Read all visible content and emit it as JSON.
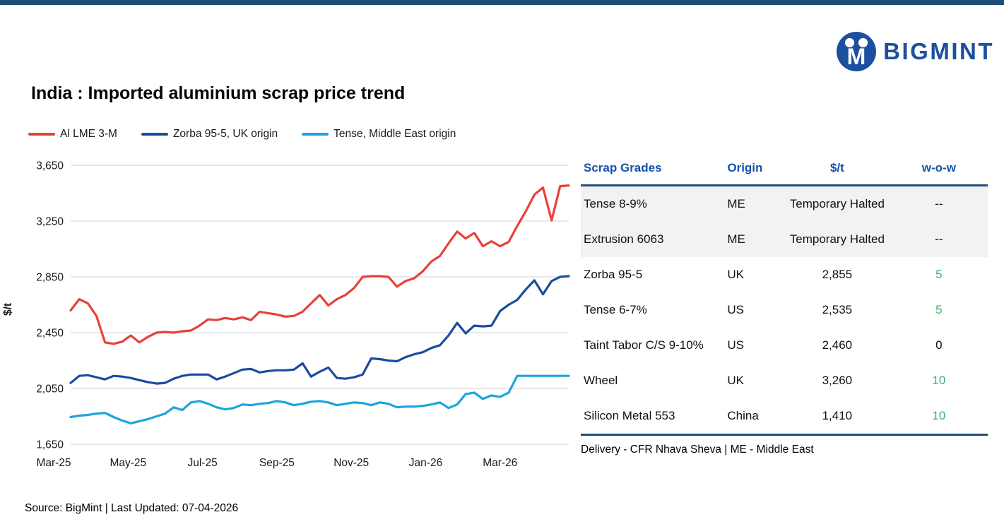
{
  "brand": {
    "logo_text": "BIGMINT"
  },
  "title": "India : Imported aluminium scrap price trend",
  "legend": [
    {
      "label": "Al LME 3-M",
      "color": "#E8403A"
    },
    {
      "label": "Zorba 95-5, UK origin",
      "color": "#1B4C9E"
    },
    {
      "label": "Tense, Middle East origin",
      "color": "#1CA4DE"
    }
  ],
  "chart_data": {
    "type": "line",
    "title": "India : Imported aluminium scrap price trend",
    "xlabel": "",
    "ylabel": "$/t",
    "ylim": [
      1650,
      3650
    ],
    "grid": "horizontal",
    "legend_position": "top-left",
    "yticks": [
      {
        "value": 3650,
        "label": "3,650"
      },
      {
        "value": 3250,
        "label": "3,250"
      },
      {
        "value": 2850,
        "label": "2,850"
      },
      {
        "value": 2450,
        "label": "2,450"
      },
      {
        "value": 2050,
        "label": "2,050"
      },
      {
        "value": 1650,
        "label": "1,650"
      }
    ],
    "xtick_labels": [
      "Mar-25",
      "May-25",
      "Jul-25",
      "Sep-25",
      "Nov-25",
      "Jan-26",
      "Mar-26"
    ],
    "x_unit": "weekly",
    "series": [
      {
        "name": "Al LME 3-M",
        "color": "#E8403A",
        "values": [
          2610,
          2690,
          2660,
          2570,
          2380,
          2370,
          2385,
          2430,
          2380,
          2420,
          2450,
          2455,
          2450,
          2460,
          2465,
          2500,
          2545,
          2540,
          2555,
          2545,
          2560,
          2540,
          2600,
          2590,
          2580,
          2565,
          2570,
          2600,
          2660,
          2720,
          2645,
          2690,
          2720,
          2770,
          2850,
          2855,
          2855,
          2850,
          2780,
          2820,
          2840,
          2890,
          2960,
          3000,
          3090,
          3175,
          3125,
          3165,
          3070,
          3105,
          3070,
          3100,
          3215,
          3320,
          3440,
          3490,
          3255,
          3500,
          3505
        ]
      },
      {
        "name": "Zorba 95-5, UK origin",
        "color": "#1B4C9E",
        "values": [
          2090,
          2140,
          2145,
          2130,
          2115,
          2140,
          2135,
          2125,
          2110,
          2095,
          2085,
          2090,
          2120,
          2140,
          2150,
          2150,
          2150,
          2115,
          2135,
          2160,
          2185,
          2190,
          2165,
          2175,
          2180,
          2180,
          2185,
          2230,
          2135,
          2170,
          2200,
          2125,
          2120,
          2130,
          2150,
          2265,
          2260,
          2250,
          2245,
          2275,
          2295,
          2310,
          2340,
          2360,
          2430,
          2520,
          2445,
          2500,
          2495,
          2500,
          2605,
          2650,
          2685,
          2760,
          2825,
          2725,
          2820,
          2850,
          2855
        ]
      },
      {
        "name": "Tense, Middle East origin",
        "color": "#1CA4DE",
        "values": [
          1845,
          1855,
          1860,
          1870,
          1875,
          1845,
          1820,
          1800,
          1815,
          1830,
          1850,
          1870,
          1915,
          1895,
          1950,
          1960,
          1940,
          1915,
          1900,
          1910,
          1935,
          1930,
          1940,
          1945,
          1960,
          1950,
          1930,
          1940,
          1955,
          1960,
          1950,
          1930,
          1940,
          1950,
          1945,
          1930,
          1950,
          1940,
          1915,
          1920,
          1920,
          1925,
          1935,
          1950,
          1910,
          1935,
          2010,
          2020,
          1975,
          2000,
          1990,
          2020,
          2140,
          2140,
          2140,
          2140,
          2140,
          2140,
          2140
        ]
      }
    ]
  },
  "table": {
    "headers": [
      "Scrap Grades",
      "Origin",
      "$/t",
      "w-o-w"
    ],
    "rows": [
      {
        "grade": "Tense 8-9%",
        "origin": "ME",
        "price": "Temporary Halted",
        "wow": "--",
        "wow_positive": false,
        "shaded": true
      },
      {
        "grade": "Extrusion 6063",
        "origin": "ME",
        "price": "Temporary Halted",
        "wow": "--",
        "wow_positive": false,
        "shaded": true
      },
      {
        "grade": "Zorba 95-5",
        "origin": "UK",
        "price": "2,855",
        "wow": "5",
        "wow_positive": true,
        "shaded": false
      },
      {
        "grade": "Tense 6-7%",
        "origin": "US",
        "price": "2,535",
        "wow": "5",
        "wow_positive": true,
        "shaded": false
      },
      {
        "grade": "Taint Tabor C/S 9-10%",
        "origin": "US",
        "price": "2,460",
        "wow": "0",
        "wow_positive": false,
        "shaded": false
      },
      {
        "grade": "Wheel",
        "origin": "UK",
        "price": "3,260",
        "wow": "10",
        "wow_positive": true,
        "shaded": false
      },
      {
        "grade": "Silicon Metal 553",
        "origin": "China",
        "price": "1,410",
        "wow": "10",
        "wow_positive": true,
        "shaded": false
      }
    ],
    "footnote": "Delivery - CFR Nhava Sheva | ME - Middle East"
  },
  "footer": {
    "source": "Source: BigMint | Last Updated: 07-04-2026"
  },
  "colors": {
    "accent_navy": "#1F4E79",
    "table_header_blue": "#1552A8",
    "logo_blue": "#1C4FA0",
    "positive_green": "#3BAE6A",
    "gridline_gray": "#D9D9D9"
  }
}
